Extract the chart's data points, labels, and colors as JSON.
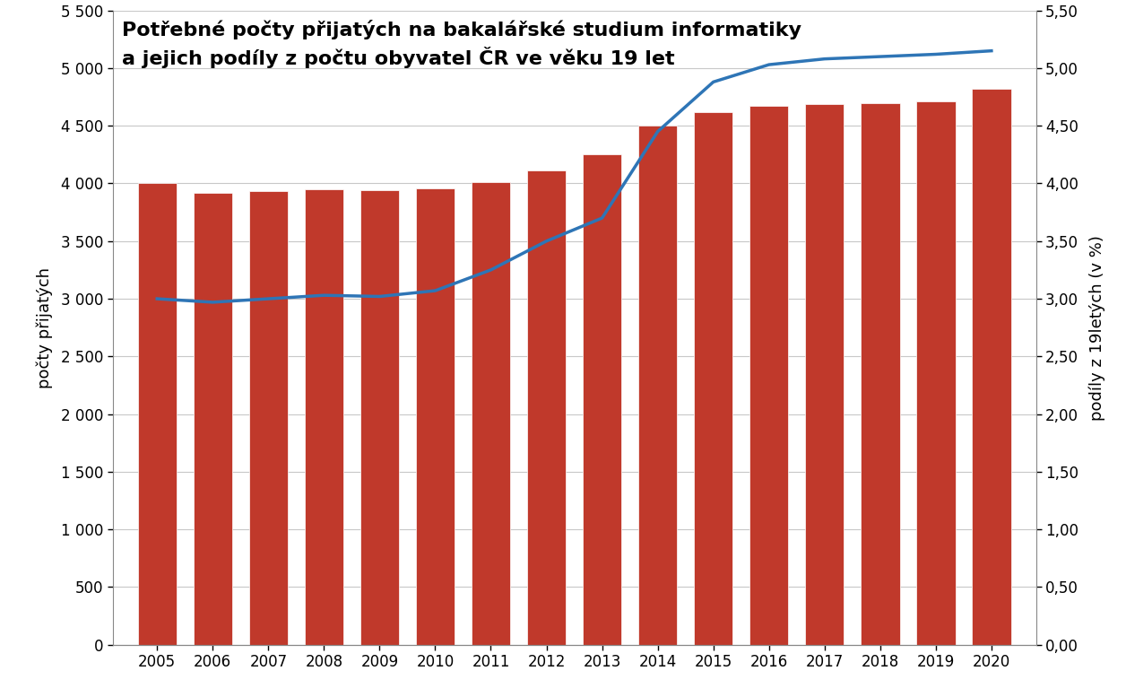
{
  "years": [
    2005,
    2006,
    2007,
    2008,
    2009,
    2010,
    2011,
    2012,
    2013,
    2014,
    2015,
    2016,
    2017,
    2018,
    2019,
    2020
  ],
  "bar_values": [
    4000,
    3920,
    3930,
    3950,
    3940,
    3960,
    4010,
    4110,
    4250,
    4500,
    4620,
    4670,
    4690,
    4700,
    4710,
    4820
  ],
  "line_values": [
    3.0,
    2.97,
    3.0,
    3.03,
    3.02,
    3.07,
    3.25,
    3.5,
    3.7,
    4.45,
    4.88,
    5.03,
    5.08,
    5.1,
    5.12,
    5.15
  ],
  "bar_color": "#c0392b",
  "line_color": "#2e75b6",
  "title_line1": "Potřebné počty přijatých na bakalářské studium informatiky",
  "title_line2": "a jejich podíly z počtu obyvatel ČR ve věku 19 let",
  "ylabel_left": "počty přijatých",
  "ylabel_right": "podíly z 19letých (v %)",
  "ylim_left": [
    0,
    5500
  ],
  "ylim_right": [
    0.0,
    5.5
  ],
  "yticks_left": [
    0,
    500,
    1000,
    1500,
    2000,
    2500,
    3000,
    3500,
    4000,
    4500,
    5000,
    5500
  ],
  "ytick_labels_left": [
    "0",
    "500",
    "1 000",
    "1 500",
    "2 000",
    "2 500",
    "3 000",
    "3 500",
    "4 000",
    "4 500",
    "5 000",
    "5 500"
  ],
  "yticks_right": [
    0.0,
    0.5,
    1.0,
    1.5,
    2.0,
    2.5,
    3.0,
    3.5,
    4.0,
    4.5,
    5.0,
    5.5
  ],
  "ytick_labels_right": [
    "0,00",
    "0,50",
    "1,00",
    "1,50",
    "2,00",
    "2,50",
    "3,00",
    "3,50",
    "4,00",
    "4,50",
    "5,00",
    "5,50"
  ],
  "background_color": "#ffffff",
  "grid_color": "#c8c8c8",
  "title_fontsize": 16,
  "axis_label_fontsize": 13,
  "tick_fontsize": 12,
  "bar_width": 0.7
}
